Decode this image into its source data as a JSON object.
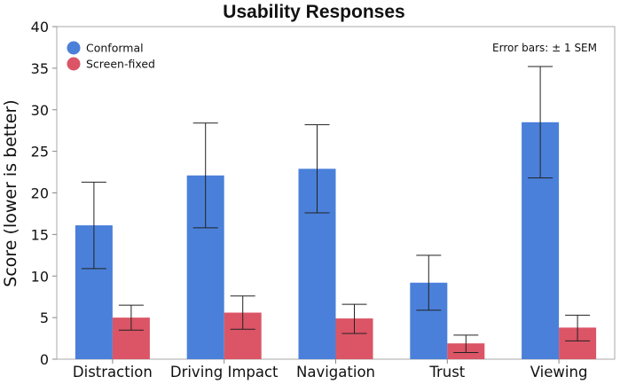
{
  "chart_data": {
    "type": "bar",
    "title": "Usability Responses",
    "xlabel": "",
    "ylabel": "Score (lower is better)",
    "ylim": [
      0,
      40
    ],
    "yticks": [
      0,
      5,
      10,
      15,
      20,
      25,
      30,
      35,
      40
    ],
    "grid": false,
    "legend_position": "top-left",
    "annotation": "Error bars: ± 1 SEM",
    "categories": [
      "Distraction",
      "Driving Impact",
      "Navigation",
      "Trust",
      "Viewing"
    ],
    "series": [
      {
        "name": "Conformal",
        "color": "#4a80d9",
        "values": [
          16.1,
          22.1,
          22.9,
          9.2,
          28.5
        ],
        "err_low": [
          10.9,
          15.8,
          17.6,
          5.9,
          21.8
        ],
        "err_high": [
          21.3,
          28.4,
          28.2,
          12.5,
          35.2
        ]
      },
      {
        "name": "Screen-fixed",
        "color": "#db5566",
        "values": [
          5.0,
          5.6,
          4.9,
          1.9,
          3.8
        ],
        "err_low": [
          3.5,
          3.6,
          3.1,
          0.8,
          2.2
        ],
        "err_high": [
          6.5,
          7.6,
          6.6,
          2.9,
          5.3
        ]
      }
    ]
  }
}
